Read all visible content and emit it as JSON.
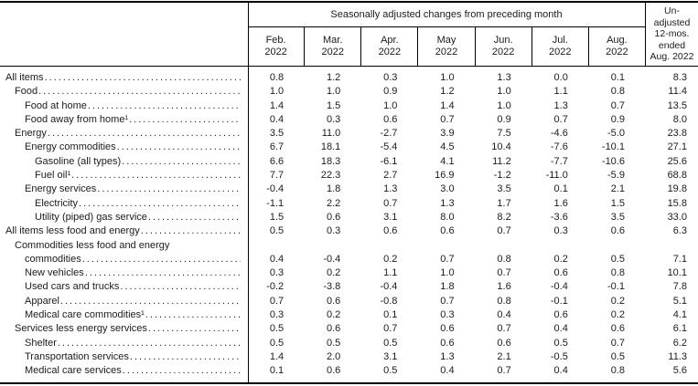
{
  "table": {
    "header": {
      "group_title": "Seasonally adjusted changes from preceding month",
      "months": [
        {
          "month": "Feb.",
          "year": "2022"
        },
        {
          "month": "Mar.",
          "year": "2022"
        },
        {
          "month": "Apr.",
          "year": "2022"
        },
        {
          "month": "May",
          "year": "2022"
        },
        {
          "month": "Jun.",
          "year": "2022"
        },
        {
          "month": "Jul.",
          "year": "2022"
        },
        {
          "month": "Aug.",
          "year": "2022"
        }
      ],
      "unadjusted_lines": [
        "Un-",
        "adjusted",
        "12-mos.",
        "ended",
        "Aug. 2022"
      ]
    },
    "columns": [
      "Feb. 2022",
      "Mar. 2022",
      "Apr. 2022",
      "May 2022",
      "Jun. 2022",
      "Jul. 2022",
      "Aug. 2022",
      "Un-adjusted 12-mos. ended Aug. 2022"
    ],
    "rows": [
      {
        "label": "All items",
        "indent": 0,
        "values": [
          "0.8",
          "1.2",
          "0.3",
          "1.0",
          "1.3",
          "0.0",
          "0.1",
          "8.3"
        ]
      },
      {
        "label": "Food",
        "indent": 1,
        "values": [
          "1.0",
          "1.0",
          "0.9",
          "1.2",
          "1.0",
          "1.1",
          "0.8",
          "11.4"
        ]
      },
      {
        "label": "Food at home",
        "indent": 2,
        "values": [
          "1.4",
          "1.5",
          "1.0",
          "1.4",
          "1.0",
          "1.3",
          "0.7",
          "13.5"
        ]
      },
      {
        "label": "Food away from home¹",
        "indent": 2,
        "values": [
          "0.4",
          "0.3",
          "0.6",
          "0.7",
          "0.9",
          "0.7",
          "0.9",
          "8.0"
        ]
      },
      {
        "label": "Energy",
        "indent": 1,
        "values": [
          "3.5",
          "11.0",
          "-2.7",
          "3.9",
          "7.5",
          "-4.6",
          "-5.0",
          "23.8"
        ]
      },
      {
        "label": "Energy commodities",
        "indent": 2,
        "values": [
          "6.7",
          "18.1",
          "-5.4",
          "4.5",
          "10.4",
          "-7.6",
          "-10.1",
          "27.1"
        ]
      },
      {
        "label": "Gasoline (all types)",
        "indent": 3,
        "values": [
          "6.6",
          "18.3",
          "-6.1",
          "4.1",
          "11.2",
          "-7.7",
          "-10.6",
          "25.6"
        ]
      },
      {
        "label": "Fuel oil¹",
        "indent": 3,
        "values": [
          "7.7",
          "22.3",
          "2.7",
          "16.9",
          "-1.2",
          "-11.0",
          "-5.9",
          "68.8"
        ]
      },
      {
        "label": "Energy services",
        "indent": 2,
        "values": [
          "-0.4",
          "1.8",
          "1.3",
          "3.0",
          "3.5",
          "0.1",
          "2.1",
          "19.8"
        ]
      },
      {
        "label": "Electricity",
        "indent": 3,
        "values": [
          "-1.1",
          "2.2",
          "0.7",
          "1.3",
          "1.7",
          "1.6",
          "1.5",
          "15.8"
        ]
      },
      {
        "label": "Utility (piped) gas service",
        "indent": 3,
        "values": [
          "1.5",
          "0.6",
          "3.1",
          "8.0",
          "8.2",
          "-3.6",
          "3.5",
          "33.0"
        ]
      },
      {
        "label": "All items less food and energy",
        "indent": 0,
        "values": [
          "0.5",
          "0.3",
          "0.6",
          "0.6",
          "0.7",
          "0.3",
          "0.6",
          "6.3"
        ]
      },
      {
        "label_line1": "Commodities less food and energy",
        "label_line2": "commodities",
        "indent": 1,
        "values": [
          "0.4",
          "-0.4",
          "0.2",
          "0.7",
          "0.8",
          "0.2",
          "0.5",
          "7.1"
        ]
      },
      {
        "label": "New vehicles",
        "indent": 2,
        "values": [
          "0.3",
          "0.2",
          "1.1",
          "1.0",
          "0.7",
          "0.6",
          "0.8",
          "10.1"
        ]
      },
      {
        "label": "Used cars and trucks",
        "indent": 2,
        "values": [
          "-0.2",
          "-3.8",
          "-0.4",
          "1.8",
          "1.6",
          "-0.4",
          "-0.1",
          "7.8"
        ]
      },
      {
        "label": "Apparel",
        "indent": 2,
        "values": [
          "0.7",
          "0.6",
          "-0.8",
          "0.7",
          "0.8",
          "-0.1",
          "0.2",
          "5.1"
        ]
      },
      {
        "label": "Medical care commodities¹",
        "indent": 2,
        "values": [
          "0.3",
          "0.2",
          "0.1",
          "0.3",
          "0.4",
          "0.6",
          "0.2",
          "4.1"
        ]
      },
      {
        "label": "Services less energy services",
        "indent": 1,
        "values": [
          "0.5",
          "0.6",
          "0.7",
          "0.6",
          "0.7",
          "0.4",
          "0.6",
          "6.1"
        ]
      },
      {
        "label": "Shelter",
        "indent": 2,
        "values": [
          "0.5",
          "0.5",
          "0.5",
          "0.6",
          "0.6",
          "0.5",
          "0.7",
          "6.2"
        ]
      },
      {
        "label": "Transportation services",
        "indent": 2,
        "values": [
          "1.4",
          "2.0",
          "3.1",
          "1.3",
          "2.1",
          "-0.5",
          "0.5",
          "11.3"
        ]
      },
      {
        "label": "Medical care services",
        "indent": 2,
        "values": [
          "0.1",
          "0.6",
          "0.5",
          "0.4",
          "0.7",
          "0.4",
          "0.8",
          "5.6"
        ]
      }
    ]
  },
  "colors": {
    "background": "#ffffff",
    "text": "#1b1b1b",
    "border": "#000000"
  }
}
